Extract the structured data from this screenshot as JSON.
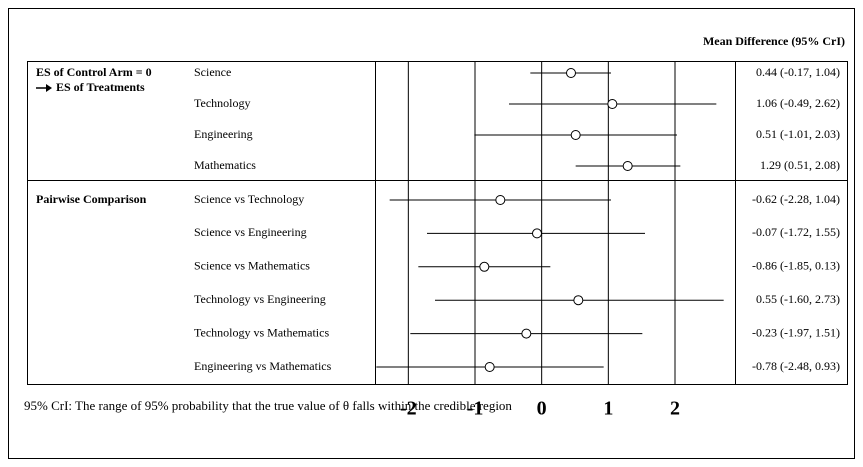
{
  "chart_data": {
    "type": "forest",
    "header": "Mean Difference (95% CrI)",
    "note": "95% CrI: The range of 95% probability that the true value of θ falls within the credible region",
    "xlim": [
      -2.5,
      2.9
    ],
    "xticks": [
      -2,
      -1,
      0,
      1,
      2
    ],
    "grid": true,
    "color": "#000000",
    "series": [
      {
        "name": "ES of Control Arm = 0",
        "subtitle": "ES of Treatments",
        "categories": [
          "Science",
          "Technology",
          "Engineering",
          "Mathematics"
        ],
        "values": [
          0.44,
          1.06,
          0.51,
          1.29
        ],
        "lower": [
          -0.17,
          -0.49,
          -1.01,
          0.51
        ],
        "upper": [
          1.04,
          2.62,
          2.03,
          2.08
        ],
        "value_labels": [
          "0.44 (-0.17, 1.04)",
          "1.06 (-0.49, 2.62)",
          "0.51 (-1.01, 2.03)",
          "1.29 (0.51, 2.08)"
        ]
      },
      {
        "name": "Pairwise Comparison",
        "categories": [
          "Science vs Technology",
          "Science vs Engineering",
          "Science vs Mathematics",
          "Technology vs Engineering",
          "Technology vs Mathematics",
          "Engineering vs Mathematics"
        ],
        "values": [
          -0.62,
          -0.07,
          -0.86,
          0.55,
          -0.23,
          -0.78
        ],
        "lower": [
          -2.28,
          -1.72,
          -1.85,
          -1.6,
          -1.97,
          -2.48
        ],
        "upper": [
          1.04,
          1.55,
          0.13,
          2.73,
          1.51,
          0.93
        ],
        "value_labels": [
          "-0.62 (-2.28, 1.04)",
          "-0.07 (-1.72, 1.55)",
          "-0.86 (-1.85, 0.13)",
          "0.55 (-1.60, 2.73)",
          "-0.23 (-1.97, 1.51)",
          "-0.78 (-2.48, 0.93)"
        ]
      }
    ]
  }
}
